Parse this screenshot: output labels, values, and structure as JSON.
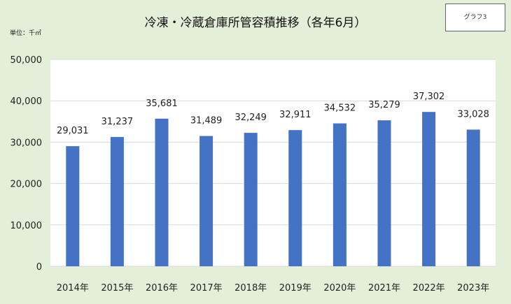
{
  "title": "冷凍・冷蔵倉庫所管容積推移（各年6月）",
  "unit_label": "単位：千㎥",
  "badge": "グラフ3",
  "colors": {
    "bar": "#4472c4",
    "plot_bg": "#ffffff",
    "grid": "#d9d9d9"
  },
  "chart_data": {
    "type": "bar",
    "title": "冷凍・冷蔵倉庫所管容積推移（各年6月）",
    "ylabel": "単位：千㎥",
    "categories": [
      "2014年",
      "2015年",
      "2016年",
      "2017年",
      "2018年",
      "2019年",
      "2020年",
      "2021年",
      "2022年",
      "2023年"
    ],
    "values": [
      29031,
      31237,
      35681,
      31489,
      32249,
      32911,
      34532,
      35279,
      37302,
      33028
    ],
    "data_labels": [
      "29,031",
      "31,237",
      "35,681",
      "31,489",
      "32,249",
      "32,911",
      "34,532",
      "35,279",
      "37,302",
      "33,028"
    ],
    "ylim": [
      0,
      50000
    ],
    "yticks": [
      0,
      10000,
      20000,
      30000,
      40000,
      50000
    ],
    "ytick_labels": [
      "0",
      "10,000",
      "20,000",
      "30,000",
      "40,000",
      "50,000"
    ],
    "grid": true
  }
}
